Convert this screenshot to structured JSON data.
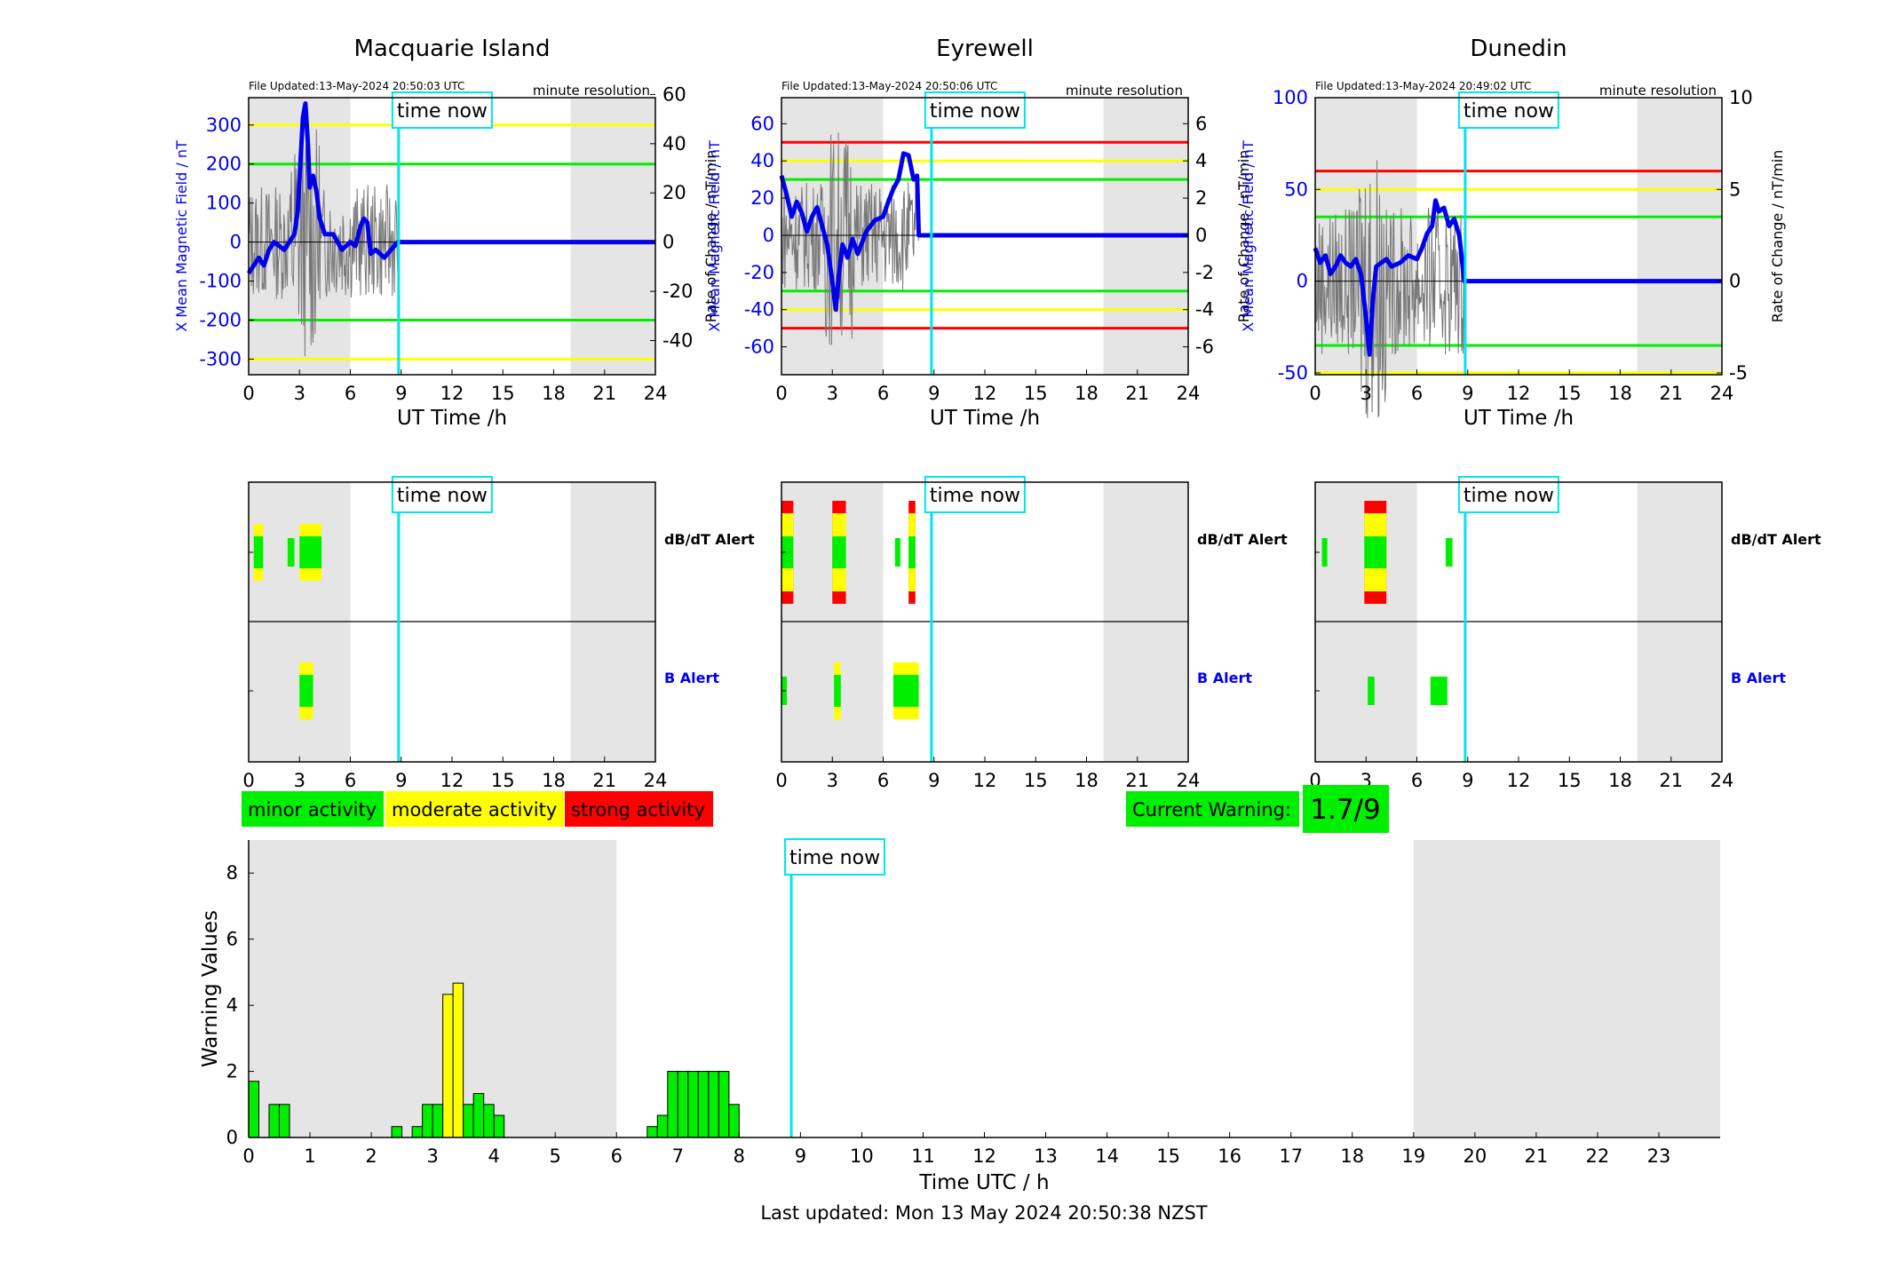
{
  "colors": {
    "shade": "#e5e5e5",
    "minor": "#00ee00",
    "moderate": "#ffff00",
    "strong": "#ff0000",
    "timenow": "#00e5ee",
    "mean": "#0000ee",
    "rate": "#777777",
    "axis": "#000000"
  },
  "common": {
    "time_now_label": "time now",
    "time_now_h": 8.85,
    "utc_ticks": [
      "0",
      "3",
      "6",
      "9",
      "12",
      "15",
      "18",
      "21",
      "24"
    ],
    "xlabel": "UT Time /h",
    "shade_ranges": [
      [
        0,
        6
      ],
      [
        19,
        24
      ]
    ],
    "file_prefix": "File Updated:",
    "resolution": "minute resolution",
    "ylabel_left": "X Mean Magnetic Field / nT",
    "ylabel_right": "Rate of Change / nT/min",
    "dbdt_label": "dB/dT Alert",
    "b_label": "B Alert"
  },
  "stations": [
    {
      "name": "Macquarie Island",
      "updated": "13-May-2024 20:50:03 UTC",
      "yl": [
        -340,
        370
      ],
      "yr": [
        -53.9,
        58.7
      ],
      "lticks": [
        -300,
        -200,
        -100,
        0,
        100,
        200,
        300
      ],
      "lticklabels": [
        "-300",
        "-200",
        "-100",
        "0",
        "100",
        "200",
        "300"
      ],
      "rticks": [
        -40,
        -20,
        0,
        20,
        40,
        60
      ],
      "rticklabels": [
        "-40",
        "-20",
        "0",
        "20",
        "40",
        "60"
      ],
      "thresholds": [
        {
          "v": 300,
          "c": "moderate"
        },
        {
          "v": 200,
          "c": "minor"
        },
        {
          "v": -200,
          "c": "minor"
        },
        {
          "v": -300,
          "c": "moderate"
        }
      ],
      "mean": [
        [
          0,
          -80
        ],
        [
          0.3,
          -60
        ],
        [
          0.6,
          -40
        ],
        [
          0.9,
          -60
        ],
        [
          1.2,
          -20
        ],
        [
          1.5,
          0
        ],
        [
          1.8,
          -10
        ],
        [
          2.1,
          -20
        ],
        [
          2.4,
          0
        ],
        [
          2.7,
          20
        ],
        [
          2.9,
          80
        ],
        [
          3.05,
          200
        ],
        [
          3.2,
          320
        ],
        [
          3.35,
          355
        ],
        [
          3.5,
          250
        ],
        [
          3.6,
          140
        ],
        [
          3.8,
          170
        ],
        [
          4.0,
          130
        ],
        [
          4.2,
          60
        ],
        [
          4.5,
          20
        ],
        [
          5.0,
          20
        ],
        [
          5.5,
          -20
        ],
        [
          6.0,
          0
        ],
        [
          6.3,
          -10
        ],
        [
          6.6,
          40
        ],
        [
          6.8,
          60
        ],
        [
          7.0,
          50
        ],
        [
          7.2,
          -30
        ],
        [
          7.5,
          -20
        ],
        [
          8.0,
          -40
        ],
        [
          8.4,
          -20
        ],
        [
          8.8,
          0
        ],
        [
          24,
          0
        ]
      ],
      "dbdt": [
        [
          0.3,
          0.85,
          "moderate"
        ],
        [
          2.3,
          2.7,
          "minor"
        ],
        [
          3.0,
          3.8,
          "moderate"
        ],
        [
          3.8,
          4.3,
          "moderate"
        ]
      ],
      "balert": [
        [
          3.0,
          3.8,
          "moderate"
        ]
      ]
    },
    {
      "name": "Eyrewell",
      "updated": "13-May-2024 20:50:06 UTC",
      "yl": [
        -75,
        74
      ],
      "yr": [
        -7.5,
        7.4
      ],
      "lticks": [
        -60,
        -40,
        -20,
        0,
        20,
        40,
        60
      ],
      "lticklabels": [
        "-60",
        "-40",
        "-20",
        "0",
        "20",
        "40",
        "60"
      ],
      "rticks": [
        -6,
        -4,
        -2,
        0,
        2,
        4,
        6
      ],
      "rticklabels": [
        "-6",
        "-4",
        "-2",
        "0",
        "2",
        "4",
        "6"
      ],
      "thresholds": [
        {
          "v": 50,
          "c": "strong"
        },
        {
          "v": 40,
          "c": "moderate"
        },
        {
          "v": 30,
          "c": "minor"
        },
        {
          "v": -30,
          "c": "minor"
        },
        {
          "v": -40,
          "c": "moderate"
        },
        {
          "v": -50,
          "c": "strong"
        }
      ],
      "mean": [
        [
          0,
          32
        ],
        [
          0.3,
          22
        ],
        [
          0.6,
          10
        ],
        [
          0.9,
          18
        ],
        [
          1.2,
          12
        ],
        [
          1.5,
          2
        ],
        [
          1.8,
          10
        ],
        [
          2.1,
          15
        ],
        [
          2.4,
          5
        ],
        [
          2.7,
          -5
        ],
        [
          3.0,
          -25
        ],
        [
          3.2,
          -40
        ],
        [
          3.4,
          -20
        ],
        [
          3.6,
          -5
        ],
        [
          3.9,
          -12
        ],
        [
          4.2,
          -2
        ],
        [
          4.5,
          -10
        ],
        [
          5.0,
          2
        ],
        [
          5.5,
          8
        ],
        [
          6.0,
          10
        ],
        [
          6.3,
          18
        ],
        [
          6.6,
          25
        ],
        [
          6.9,
          30
        ],
        [
          7.2,
          44
        ],
        [
          7.5,
          43
        ],
        [
          7.8,
          30
        ],
        [
          8.0,
          32
        ],
        [
          8.1,
          0
        ],
        [
          24,
          0
        ]
      ],
      "dbdt": [
        [
          0,
          0.7,
          "strong"
        ],
        [
          3.0,
          3.8,
          "strong"
        ],
        [
          6.7,
          7.0,
          "minor"
        ],
        [
          7.5,
          7.9,
          "strong"
        ]
      ],
      "balert": [
        [
          0,
          0.2,
          "minor"
        ],
        [
          3.1,
          3.5,
          "moderate"
        ],
        [
          6.6,
          8.1,
          "moderate"
        ]
      ]
    },
    {
      "name": "Dunedin",
      "updated": "13-May-2024 20:49:02 UTC",
      "yl": [
        -51,
        100
      ],
      "yr": [
        -5.1,
        10
      ],
      "lticks": [
        -50,
        0,
        50,
        100
      ],
      "lticklabels": [
        "-50",
        "0",
        "50",
        "100"
      ],
      "rticks": [
        -5,
        0,
        5,
        10
      ],
      "rticklabels": [
        "-5",
        "0",
        "5",
        "10"
      ],
      "thresholds": [
        {
          "v": 60,
          "c": "strong"
        },
        {
          "v": 50,
          "c": "moderate"
        },
        {
          "v": 35,
          "c": "minor"
        },
        {
          "v": -35,
          "c": "minor"
        },
        {
          "v": -50,
          "c": "moderate"
        }
      ],
      "mean": [
        [
          0,
          18
        ],
        [
          0.3,
          10
        ],
        [
          0.6,
          14
        ],
        [
          0.9,
          4
        ],
        [
          1.2,
          8
        ],
        [
          1.5,
          14
        ],
        [
          1.8,
          10
        ],
        [
          2.1,
          8
        ],
        [
          2.4,
          12
        ],
        [
          2.7,
          4
        ],
        [
          3.0,
          -20
        ],
        [
          3.2,
          -40
        ],
        [
          3.4,
          -10
        ],
        [
          3.6,
          8
        ],
        [
          3.9,
          10
        ],
        [
          4.2,
          12
        ],
        [
          4.5,
          8
        ],
        [
          5.0,
          10
        ],
        [
          5.5,
          14
        ],
        [
          6.0,
          12
        ],
        [
          6.3,
          18
        ],
        [
          6.6,
          26
        ],
        [
          6.9,
          30
        ],
        [
          7.1,
          44
        ],
        [
          7.3,
          38
        ],
        [
          7.6,
          40
        ],
        [
          7.9,
          30
        ],
        [
          8.2,
          34
        ],
        [
          8.5,
          25
        ],
        [
          8.8,
          0
        ],
        [
          24,
          0
        ]
      ],
      "dbdt": [
        [
          0.4,
          0.7,
          "minor"
        ],
        [
          2.9,
          4.2,
          "strong"
        ],
        [
          7.7,
          8.1,
          "minor"
        ]
      ],
      "balert": [
        [
          3.1,
          3.5,
          "minor"
        ],
        [
          6.8,
          7.8,
          "minor"
        ]
      ]
    }
  ],
  "legend": {
    "minor": "minor activity",
    "moderate": "moderate activity",
    "strong": "strong activity"
  },
  "current_warning": {
    "label": "Current Warning:",
    "value": "1.7/9"
  },
  "chart_data": {
    "type": "bar",
    "title": "",
    "xlabel": "Time UTC / h",
    "ylabel": "Warning Values",
    "xlim": [
      0,
      24
    ],
    "ylim": [
      0,
      9
    ],
    "yticks": [
      "0",
      "2",
      "4",
      "6",
      "8"
    ],
    "xticks": [
      "0",
      "1",
      "2",
      "3",
      "4",
      "5",
      "6",
      "7",
      "8",
      "9",
      "10",
      "11",
      "12",
      "13",
      "14",
      "15",
      "16",
      "17",
      "18",
      "19",
      "20",
      "21",
      "22",
      "23"
    ],
    "bar_width_h": 0.1667,
    "bars": [
      {
        "t": 0.0,
        "v": 1.7,
        "c": "minor"
      },
      {
        "t": 0.333,
        "v": 1.0,
        "c": "minor"
      },
      {
        "t": 0.5,
        "v": 1.0,
        "c": "minor"
      },
      {
        "t": 2.333,
        "v": 0.33,
        "c": "minor"
      },
      {
        "t": 2.667,
        "v": 0.33,
        "c": "minor"
      },
      {
        "t": 2.833,
        "v": 1.0,
        "c": "minor"
      },
      {
        "t": 3.0,
        "v": 1.0,
        "c": "minor"
      },
      {
        "t": 3.167,
        "v": 4.33,
        "c": "moderate"
      },
      {
        "t": 3.333,
        "v": 4.67,
        "c": "moderate"
      },
      {
        "t": 3.5,
        "v": 1.0,
        "c": "minor"
      },
      {
        "t": 3.667,
        "v": 1.33,
        "c": "minor"
      },
      {
        "t": 3.833,
        "v": 1.0,
        "c": "minor"
      },
      {
        "t": 4.0,
        "v": 0.67,
        "c": "minor"
      },
      {
        "t": 6.5,
        "v": 0.33,
        "c": "minor"
      },
      {
        "t": 6.667,
        "v": 0.67,
        "c": "minor"
      },
      {
        "t": 6.833,
        "v": 2.0,
        "c": "minor"
      },
      {
        "t": 7.0,
        "v": 2.0,
        "c": "minor"
      },
      {
        "t": 7.167,
        "v": 2.0,
        "c": "minor"
      },
      {
        "t": 7.333,
        "v": 2.0,
        "c": "minor"
      },
      {
        "t": 7.5,
        "v": 2.0,
        "c": "minor"
      },
      {
        "t": 7.667,
        "v": 2.0,
        "c": "minor"
      },
      {
        "t": 7.833,
        "v": 1.0,
        "c": "minor"
      }
    ],
    "shade_ranges": [
      [
        0,
        6
      ],
      [
        19,
        24
      ]
    ],
    "time_now_h": 8.85
  },
  "footer": "Last updated: Mon 13 May 2024 20:50:38 NZST"
}
